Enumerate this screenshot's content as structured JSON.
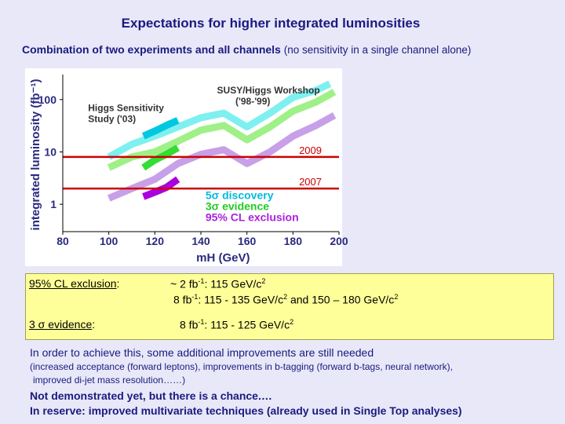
{
  "header": {
    "title": "Expectations for higher integrated luminosities",
    "subtitle_main": "Combination of two experiments and all channels",
    "subtitle_paren": "(no sensitivity in a single channel alone)"
  },
  "chart_data": {
    "type": "line",
    "xlabel": "mH (GeV)",
    "ylabel": "integrated luminosity (fb⁻¹)",
    "xlim": [
      80,
      200
    ],
    "ylim": [
      0.3,
      300
    ],
    "y_scale": "log",
    "x_ticks": [
      "80",
      "100",
      "120",
      "140",
      "160",
      "180",
      "200"
    ],
    "y_ticks": [
      "1",
      "10",
      "100"
    ],
    "annotations": [
      "Higgs Sensitivity Study ('03)",
      "SUSY/Higgs Workshop ('98-'99)"
    ],
    "series": [
      {
        "name": "SUSY/Higgs Workshop ('98-'99) 5σ discovery",
        "color": "#7ff0f0",
        "x": [
          100,
          110,
          120,
          130,
          140,
          150,
          160,
          170,
          180,
          190,
          196
        ],
        "y": [
          8,
          14,
          20,
          30,
          45,
          55,
          30,
          55,
          110,
          150,
          200
        ]
      },
      {
        "name": "SUSY/Higgs Workshop ('98-'99) 3σ evidence",
        "color": "#a0f088",
        "x": [
          100,
          110,
          120,
          130,
          140,
          150,
          160,
          170,
          180,
          190,
          198
        ],
        "y": [
          5,
          8,
          10,
          16,
          26,
          32,
          17,
          30,
          60,
          90,
          140
        ]
      },
      {
        "name": "SUSY/Higgs Workshop ('98-'99) 95% CL exclusion",
        "color": "#c8a0e8",
        "x": [
          100,
          110,
          120,
          130,
          140,
          150,
          160,
          170,
          180,
          190,
          198
        ],
        "y": [
          1.3,
          2,
          3,
          6,
          9,
          11,
          6,
          10,
          20,
          32,
          50
        ]
      },
      {
        "name": "Higgs Sensitivity Study ('03) 5σ discovery",
        "color": "#00c8e0",
        "x": [
          115,
          120,
          125,
          130
        ],
        "y": [
          20,
          25,
          32,
          40
        ]
      },
      {
        "name": "Higgs Sensitivity Study ('03) 3σ evidence",
        "color": "#33dd33",
        "x": [
          115,
          120,
          125,
          130
        ],
        "y": [
          5,
          7,
          9,
          12
        ]
      },
      {
        "name": "Higgs Sensitivity Study ('03) 95% CL exclusion",
        "color": "#aa00dd",
        "x": [
          115,
          120,
          125,
          130
        ],
        "y": [
          1.4,
          1.7,
          2.1,
          3
        ]
      }
    ],
    "hlines": [
      {
        "label": "2009",
        "y": 8,
        "color": "#cc0000"
      },
      {
        "label": "2007",
        "y": 2,
        "color": "#cc0000"
      }
    ],
    "legend": [
      "5σ discovery",
      "3σ evidence",
      "95% CL exclusion"
    ],
    "legend_colors": [
      "#00bbdd",
      "#22cc22",
      "#aa22dd"
    ],
    "legend_position": "bottom-right"
  },
  "box": {
    "row1_label": "95% CL exclusion",
    "row1_colon": ":",
    "row1_a_pre": "~ 2  fb",
    "row1_a_exp": "-1",
    "row1_a_mid": ":   115 GeV/c",
    "row1_a_exp2": "2",
    "row1_b_pre": "8  fb",
    "row1_b_exp": "-1",
    "row1_b_mid": ":   115 - 135 GeV/c",
    "row1_b_exp2": "2",
    "row1_b_post": "  and 150 – 180 GeV/c",
    "row1_b_exp3": "2",
    "row2_label": "3 σ evidence",
    "row2_colon": ":",
    "row2_pre": "8  fb",
    "row2_exp": "-1",
    "row2_mid": ":   115 - 125 GeV/c",
    "row2_exp2": "2"
  },
  "footer": {
    "note": "In order to achieve this, some additional improvements are still needed",
    "detail1": "(increased acceptance (forward leptons), improvements in b-tagging (forward b-tags, neural network),",
    "detail2": "improved di-jet mass resolution……)",
    "bold1": "Not demonstrated yet, but there is a chance.…",
    "bold2": "In reserve: improved multivariate techniques (already used in Single Top analyses)"
  }
}
